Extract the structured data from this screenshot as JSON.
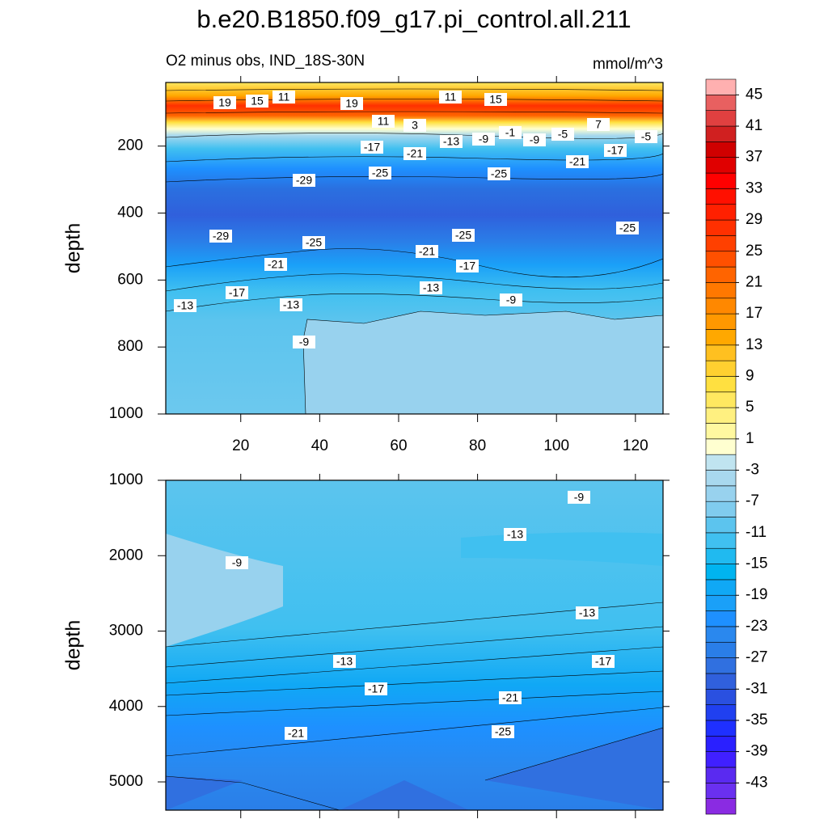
{
  "title": "b.e20.B1850.f09_g17.pi_control.all.211",
  "subtitle": "O2 minus obs, IND_18S-30N",
  "units": "mmol/m^3",
  "colorbar": {
    "lim": [
      -47,
      47
    ],
    "ticks": [
      45,
      41,
      37,
      33,
      29,
      25,
      21,
      17,
      13,
      9,
      5,
      1,
      -3,
      -7,
      -11,
      -15,
      -19,
      -23,
      -27,
      -31,
      -35,
      -39,
      -43
    ],
    "colors": [
      "#8a2be2",
      "#6a30f0",
      "#5a2af0",
      "#4020ff",
      "#2a20ff",
      "#1f30ff",
      "#2040f0",
      "#2a50e0",
      "#3060dc",
      "#3070e0",
      "#2a7ee8",
      "#2a88ee",
      "#1e90ff",
      "#1aa0f8",
      "#10a8f5",
      "#00b4f0",
      "#20baf0",
      "#40c0f0",
      "#5cc4ee",
      "#80ccee",
      "#98d2ee",
      "#a8d8ee",
      "#c0e4f0",
      "#ffffd0",
      "#fff8a0",
      "#fff080",
      "#ffe860",
      "#ffe040",
      "#ffd030",
      "#ffc020",
      "#ffa800",
      "#ff9800",
      "#ff8800",
      "#ff7800",
      "#ff6400",
      "#ff5000",
      "#ff4000",
      "#ff3000",
      "#ff2000",
      "#ff1000",
      "#ff0000",
      "#e00000",
      "#d00000",
      "#d02020",
      "#e04040",
      "#e86060",
      "#ffb0b0"
    ]
  },
  "chart_data": [
    {
      "type": "contour",
      "ylabel": "depth",
      "xlim": [
        1,
        127
      ],
      "xticks": [
        20,
        40,
        60,
        80,
        100,
        120
      ],
      "xtick_labels": true,
      "ylim": [
        10,
        1000
      ],
      "y_reversed": true,
      "yticks": [
        200,
        400,
        600,
        800,
        1000
      ],
      "contour_labels": [
        19,
        15,
        11,
        19,
        11,
        15,
        11,
        3,
        -13,
        -9,
        -1,
        -9,
        -5,
        7,
        -5,
        -17,
        -21,
        -17,
        -21,
        -29,
        -25,
        -25,
        -29,
        -25,
        -25,
        -25,
        -21,
        -21,
        -17,
        -17,
        -13,
        -13,
        -13,
        -9,
        -9
      ]
    },
    {
      "type": "contour",
      "ylabel": "depth",
      "xlim": [
        1,
        127
      ],
      "xticks": [
        20,
        40,
        60,
        80,
        100,
        120
      ],
      "xtick_labels": false,
      "ylim": [
        1000,
        5375
      ],
      "y_reversed": true,
      "yticks": [
        1000,
        2000,
        3000,
        4000,
        5000
      ],
      "contour_labels": [
        -9,
        -13,
        -9,
        -13,
        -13,
        -17,
        -17,
        -21,
        -21,
        -25
      ]
    }
  ]
}
